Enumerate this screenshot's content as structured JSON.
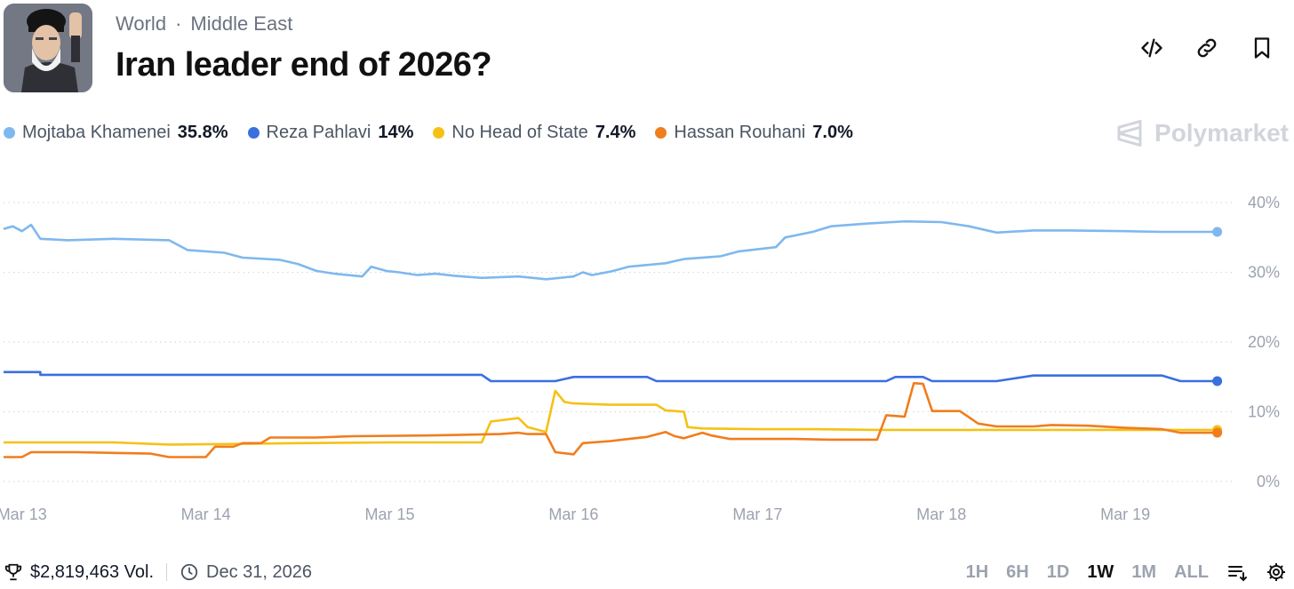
{
  "header": {
    "breadcrumb": [
      "World",
      "Middle East"
    ],
    "separator": "·",
    "title": "Iran leader end of 2026?"
  },
  "actions": [
    {
      "name": "embed-icon",
      "label": "Embed"
    },
    {
      "name": "link-icon",
      "label": "Copy link"
    },
    {
      "name": "bookmark-icon",
      "label": "Bookmark"
    }
  ],
  "legend": [
    {
      "name": "Mojtaba Khamenei",
      "value": "35.8%",
      "color": "#7fb8ee"
    },
    {
      "name": "Reza Pahlavi",
      "value": "14%",
      "color": "#3b6fe0"
    },
    {
      "name": "No Head of State",
      "value": "7.4%",
      "color": "#f5c116"
    },
    {
      "name": "Hassan Rouhani",
      "value": "7.0%",
      "color": "#f07d1e"
    }
  ],
  "brand": "Polymarket",
  "footer": {
    "volume": "$2,819,463 Vol.",
    "end_date": "Dec 31, 2026",
    "ranges": [
      "1H",
      "6H",
      "1D",
      "1W",
      "1M",
      "ALL"
    ],
    "active_range": "1W"
  },
  "chart_data": {
    "type": "line",
    "x_labels": [
      "Mar 13",
      "Mar 14",
      "Mar 15",
      "Mar 16",
      "Mar 17",
      "Mar 18",
      "Mar 19"
    ],
    "x_range": [
      12.9,
      19.55
    ],
    "y_ticks": [
      "0%",
      "10%",
      "20%",
      "30%",
      "40%"
    ],
    "ylim": [
      0,
      40
    ],
    "grid": true,
    "legend_position": "top-left",
    "series": [
      {
        "name": "Mojtaba Khamenei",
        "color": "#7fb8ee",
        "points": [
          [
            12.9,
            36.2
          ],
          [
            12.95,
            36.6
          ],
          [
            13.0,
            35.9
          ],
          [
            13.05,
            36.8
          ],
          [
            13.1,
            34.8
          ],
          [
            13.25,
            34.6
          ],
          [
            13.5,
            34.8
          ],
          [
            13.8,
            34.6
          ],
          [
            13.9,
            33.2
          ],
          [
            14.1,
            32.8
          ],
          [
            14.2,
            32.1
          ],
          [
            14.4,
            31.8
          ],
          [
            14.5,
            31.2
          ],
          [
            14.6,
            30.2
          ],
          [
            14.7,
            29.8
          ],
          [
            14.85,
            29.4
          ],
          [
            14.9,
            30.8
          ],
          [
            14.98,
            30.2
          ],
          [
            15.05,
            30.0
          ],
          [
            15.15,
            29.6
          ],
          [
            15.25,
            29.8
          ],
          [
            15.35,
            29.5
          ],
          [
            15.5,
            29.2
          ],
          [
            15.7,
            29.4
          ],
          [
            15.85,
            29.0
          ],
          [
            16.0,
            29.4
          ],
          [
            16.05,
            30.0
          ],
          [
            16.1,
            29.6
          ],
          [
            16.2,
            30.1
          ],
          [
            16.3,
            30.8
          ],
          [
            16.5,
            31.3
          ],
          [
            16.6,
            31.9
          ],
          [
            16.8,
            32.3
          ],
          [
            16.9,
            33.0
          ],
          [
            17.1,
            33.6
          ],
          [
            17.15,
            35.0
          ],
          [
            17.3,
            35.8
          ],
          [
            17.4,
            36.6
          ],
          [
            17.6,
            37.0
          ],
          [
            17.8,
            37.3
          ],
          [
            18.0,
            37.2
          ],
          [
            18.15,
            36.6
          ],
          [
            18.3,
            35.7
          ],
          [
            18.5,
            36.0
          ],
          [
            18.7,
            36.0
          ],
          [
            19.0,
            35.9
          ],
          [
            19.2,
            35.8
          ],
          [
            19.5,
            35.8
          ]
        ]
      },
      {
        "name": "Reza Pahlavi",
        "color": "#3b6fe0",
        "points": [
          [
            12.9,
            15.7
          ],
          [
            13.1,
            15.7
          ],
          [
            13.1,
            15.3
          ],
          [
            14.5,
            15.3
          ],
          [
            15.5,
            15.3
          ],
          [
            15.55,
            14.4
          ],
          [
            15.9,
            14.4
          ],
          [
            16.0,
            15.0
          ],
          [
            16.4,
            15.0
          ],
          [
            16.45,
            14.4
          ],
          [
            17.2,
            14.4
          ],
          [
            17.7,
            14.4
          ],
          [
            17.75,
            15.0
          ],
          [
            17.9,
            15.0
          ],
          [
            17.95,
            14.4
          ],
          [
            18.3,
            14.4
          ],
          [
            18.5,
            15.2
          ],
          [
            19.0,
            15.2
          ],
          [
            19.2,
            15.2
          ],
          [
            19.3,
            14.4
          ],
          [
            19.5,
            14.4
          ]
        ]
      },
      {
        "name": "No Head of State",
        "color": "#f5c116",
        "points": [
          [
            12.9,
            5.6
          ],
          [
            13.5,
            5.6
          ],
          [
            13.8,
            5.3
          ],
          [
            14.2,
            5.4
          ],
          [
            14.5,
            5.5
          ],
          [
            15.0,
            5.6
          ],
          [
            15.3,
            5.6
          ],
          [
            15.5,
            5.6
          ],
          [
            15.55,
            8.6
          ],
          [
            15.7,
            9.1
          ],
          [
            15.75,
            7.8
          ],
          [
            15.85,
            7.1
          ],
          [
            15.9,
            13.0
          ],
          [
            15.95,
            11.4
          ],
          [
            16.0,
            11.2
          ],
          [
            16.2,
            11.0
          ],
          [
            16.45,
            11.0
          ],
          [
            16.5,
            10.2
          ],
          [
            16.6,
            10.0
          ],
          [
            16.62,
            7.8
          ],
          [
            16.7,
            7.6
          ],
          [
            17.0,
            7.5
          ],
          [
            17.3,
            7.5
          ],
          [
            17.65,
            7.4
          ],
          [
            18.0,
            7.4
          ],
          [
            18.3,
            7.4
          ],
          [
            19.0,
            7.4
          ],
          [
            19.5,
            7.4
          ]
        ]
      },
      {
        "name": "Hassan Rouhani",
        "color": "#f07d1e",
        "points": [
          [
            12.9,
            3.5
          ],
          [
            13.0,
            3.5
          ],
          [
            13.05,
            4.2
          ],
          [
            13.3,
            4.2
          ],
          [
            13.7,
            4.0
          ],
          [
            13.8,
            3.5
          ],
          [
            14.0,
            3.5
          ],
          [
            14.05,
            5.0
          ],
          [
            14.15,
            5.0
          ],
          [
            14.2,
            5.5
          ],
          [
            14.3,
            5.5
          ],
          [
            14.35,
            6.3
          ],
          [
            14.6,
            6.3
          ],
          [
            14.8,
            6.5
          ],
          [
            15.2,
            6.6
          ],
          [
            15.6,
            6.8
          ],
          [
            15.7,
            7.0
          ],
          [
            15.75,
            6.8
          ],
          [
            15.85,
            6.8
          ],
          [
            15.9,
            4.2
          ],
          [
            16.0,
            3.9
          ],
          [
            16.05,
            5.5
          ],
          [
            16.2,
            5.8
          ],
          [
            16.3,
            6.1
          ],
          [
            16.4,
            6.4
          ],
          [
            16.5,
            7.1
          ],
          [
            16.55,
            6.5
          ],
          [
            16.6,
            6.2
          ],
          [
            16.7,
            7.0
          ],
          [
            16.75,
            6.6
          ],
          [
            16.85,
            6.1
          ],
          [
            17.0,
            6.1
          ],
          [
            17.2,
            6.1
          ],
          [
            17.4,
            6.0
          ],
          [
            17.65,
            6.0
          ],
          [
            17.7,
            9.5
          ],
          [
            17.8,
            9.3
          ],
          [
            17.85,
            14.1
          ],
          [
            17.9,
            14.0
          ],
          [
            17.95,
            10.1
          ],
          [
            18.1,
            10.1
          ],
          [
            18.2,
            8.3
          ],
          [
            18.3,
            7.9
          ],
          [
            18.5,
            7.9
          ],
          [
            18.6,
            8.1
          ],
          [
            18.8,
            8.0
          ],
          [
            19.0,
            7.7
          ],
          [
            19.2,
            7.5
          ],
          [
            19.3,
            7.0
          ],
          [
            19.5,
            7.0
          ]
        ]
      }
    ]
  }
}
